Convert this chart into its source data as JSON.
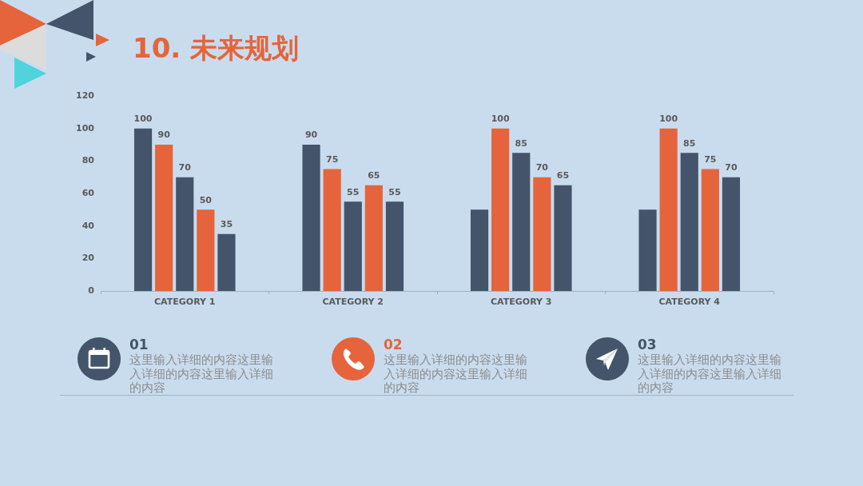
{
  "chart_data": {
    "type": "bar",
    "title": "10. 未来规划",
    "categories": [
      "CATEGORY 1",
      "CATEGORY 2",
      "CATEGORY 3",
      "CATEGORY 4"
    ],
    "series": [
      {
        "color": "#44546a",
        "values": [
          100,
          90,
          50,
          50
        ],
        "value_labels": [
          "100",
          "90",
          null,
          null
        ]
      },
      {
        "color": "#e5643b",
        "values": [
          90,
          75,
          100,
          100
        ],
        "value_labels": [
          "90",
          "75",
          "100",
          "100"
        ]
      },
      {
        "color": "#44546a",
        "values": [
          70,
          55,
          85,
          85
        ],
        "value_labels": [
          "70",
          "55",
          "85",
          "85"
        ]
      },
      {
        "color": "#e5643b",
        "values": [
          50,
          65,
          70,
          75
        ],
        "value_labels": [
          "50",
          "65",
          "70",
          "75"
        ]
      },
      {
        "color": "#44546a",
        "values": [
          35,
          55,
          65,
          70
        ],
        "value_labels": [
          "35",
          "55",
          "65",
          "70"
        ]
      }
    ],
    "ylim": [
      0,
      120
    ],
    "yticks": [
      0,
      20,
      40,
      60,
      80,
      100,
      120
    ],
    "annotations": [
      "01",
      "这里输入详细的内容这里输入详细的内容这里输入详细的内容",
      "02",
      "这里输入详细的内容这里输入详细的内容这里输入详细的内容",
      "03",
      "这里输入详细的内容这里输入详细的内容这里输入详细的内容"
    ]
  }
}
